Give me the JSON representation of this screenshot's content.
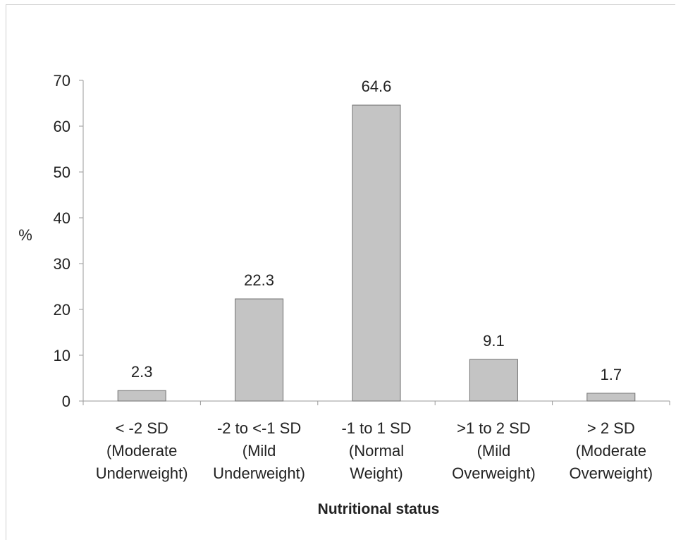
{
  "chart_data": {
    "type": "bar",
    "title": "",
    "xlabel": "Nutritional status",
    "ylabel": "%",
    "ylim": [
      0,
      70
    ],
    "yticks": [
      0,
      10,
      20,
      30,
      40,
      50,
      60,
      70
    ],
    "categories": [
      [
        "< -2 SD",
        "(Moderate",
        "Underweight)"
      ],
      [
        "-2 to <-1 SD",
        "(Mild",
        "Underweight)"
      ],
      [
        "-1 to 1 SD",
        "(Normal",
        "Weight)"
      ],
      [
        ">1 to 2 SD",
        "(Mild",
        "Overweight)"
      ],
      [
        "> 2 SD",
        "(Moderate",
        "Overweight)"
      ]
    ],
    "values": [
      2.3,
      22.3,
      64.6,
      9.1,
      1.7
    ],
    "data_labels": [
      "2.3",
      "22.3",
      "64.6",
      "9.1",
      "1.7"
    ],
    "grid": false,
    "legend": "none",
    "colors": {
      "bar_fill": "#c4c4c4",
      "bar_stroke": "#6f6f6f",
      "axis": "#9a9a9a",
      "text": "#222222"
    }
  }
}
